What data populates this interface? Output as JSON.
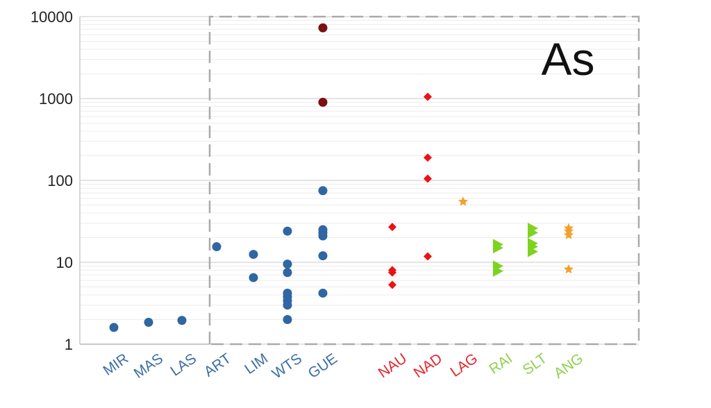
{
  "chart_data": {
    "type": "scatter",
    "title": "",
    "annotation": "As",
    "xlabel": "",
    "ylabel": "",
    "yscale": "log",
    "ylim": [
      1,
      10000
    ],
    "ytick_labels": [
      "1",
      "10",
      "100",
      "1000",
      "10000"
    ],
    "grid": "horizontal minor gridlines",
    "categories": [
      {
        "name": "MIR",
        "color": "#3b6ea5"
      },
      {
        "name": "MAS",
        "color": "#3b6ea5"
      },
      {
        "name": "LAS",
        "color": "#3b6ea5"
      },
      {
        "name": "ART",
        "color": "#3b6ea5"
      },
      {
        "name": "LIM",
        "color": "#3b6ea5"
      },
      {
        "name": "WTS",
        "color": "#3b6ea5"
      },
      {
        "name": "GUE",
        "color": "#3b6ea5"
      },
      {
        "name": "NAU",
        "color": "#e8242b"
      },
      {
        "name": "NAD",
        "color": "#e8242b"
      },
      {
        "name": "LAG",
        "color": "#e8242b"
      },
      {
        "name": "RAI",
        "color": "#8fd14f"
      },
      {
        "name": "SLT",
        "color": "#8fd14f"
      },
      {
        "name": "ANG",
        "color": "#8fd14f"
      }
    ],
    "series": [
      {
        "marker": "circle",
        "color": "#2f66a3",
        "points": [
          {
            "x": "MIR",
            "y": 1.6
          },
          {
            "x": "MAS",
            "y": 1.85
          },
          {
            "x": "LAS",
            "y": 1.95
          },
          {
            "x": "ART",
            "y": 15.5
          },
          {
            "x": "LIM",
            "y": 12.5
          },
          {
            "x": "LIM",
            "y": 6.5
          },
          {
            "x": "WTS",
            "y": 24
          },
          {
            "x": "WTS",
            "y": 9.5
          },
          {
            "x": "WTS",
            "y": 7.5
          },
          {
            "x": "WTS",
            "y": 4.2
          },
          {
            "x": "WTS",
            "y": 3.8
          },
          {
            "x": "WTS",
            "y": 3.4
          },
          {
            "x": "WTS",
            "y": 3.0
          },
          {
            "x": "WTS",
            "y": 2.0
          },
          {
            "x": "GUE",
            "y": 75
          },
          {
            "x": "GUE",
            "y": 25
          },
          {
            "x": "GUE",
            "y": 23
          },
          {
            "x": "GUE",
            "y": 21
          },
          {
            "x": "GUE",
            "y": 12
          },
          {
            "x": "GUE",
            "y": 4.2
          }
        ]
      },
      {
        "marker": "circle",
        "color": "#7a1010",
        "points": [
          {
            "x": "GUE",
            "y": 7300
          },
          {
            "x": "GUE",
            "y": 900
          }
        ]
      },
      {
        "marker": "diamond",
        "color": "#ee1111",
        "points": [
          {
            "x": "NAU",
            "y": 27
          },
          {
            "x": "NAU",
            "y": 8
          },
          {
            "x": "NAU",
            "y": 7.5
          },
          {
            "x": "NAU",
            "y": 5.3
          },
          {
            "x": "NAD",
            "y": 1050
          },
          {
            "x": "NAD",
            "y": 190
          },
          {
            "x": "NAD",
            "y": 105
          },
          {
            "x": "NAD",
            "y": 11.8
          }
        ]
      },
      {
        "marker": "star",
        "color": "#f2a02d",
        "points": [
          {
            "x": "LAG",
            "y": 55
          },
          {
            "x": "ANG",
            "y": 26
          },
          {
            "x": "ANG",
            "y": 24
          },
          {
            "x": "ANG",
            "y": 21.5
          },
          {
            "x": "ANG",
            "y": 8.2
          }
        ]
      },
      {
        "marker": "triangle-right",
        "color": "#7ed321",
        "points": [
          {
            "x": "RAI",
            "y": 16.5
          },
          {
            "x": "RAI",
            "y": 15
          },
          {
            "x": "RAI",
            "y": 9
          },
          {
            "x": "RAI",
            "y": 7.8
          },
          {
            "x": "SLT",
            "y": 26
          },
          {
            "x": "SLT",
            "y": 23
          },
          {
            "x": "SLT",
            "y": 17
          },
          {
            "x": "SLT",
            "y": 15.5
          },
          {
            "x": "SLT",
            "y": 13.5
          }
        ]
      }
    ]
  }
}
